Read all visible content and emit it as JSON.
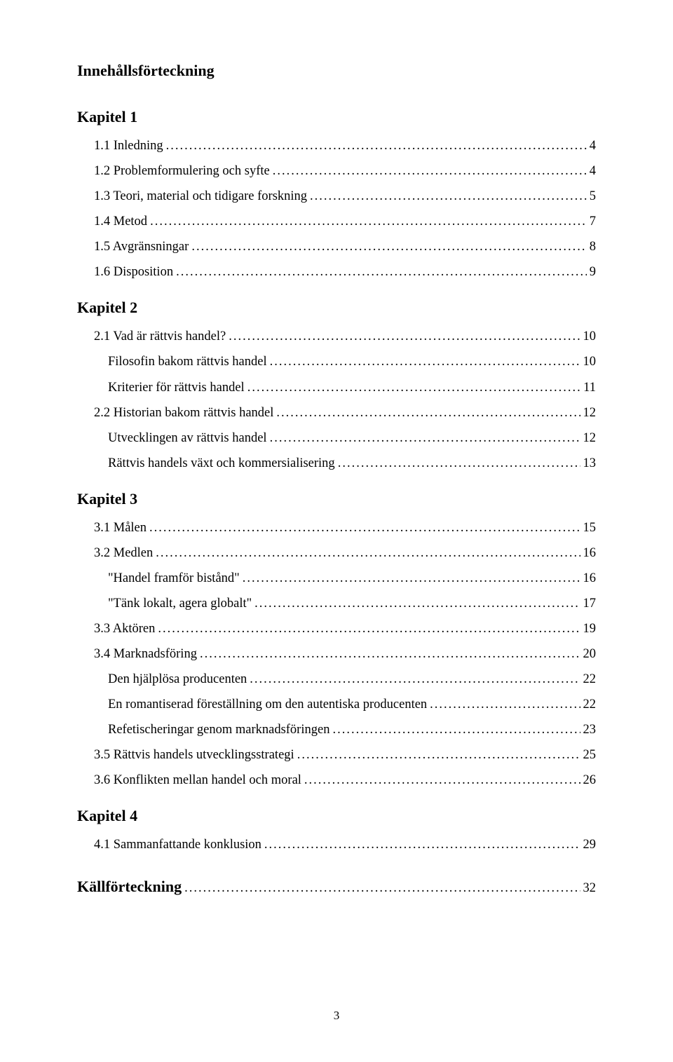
{
  "title": "Innehållsförteckning",
  "page_number": "3",
  "colors": {
    "bg": "#ffffff",
    "text": "#000000"
  },
  "typography": {
    "family": "Times New Roman",
    "title_pt": 17,
    "body_pt": 14
  },
  "chapters": [
    {
      "heading": "Kapitel 1",
      "entries": [
        {
          "level": 1,
          "label": "1.1 Inledning",
          "page": "4"
        },
        {
          "level": 1,
          "label": "1.2 Problemformulering och syfte",
          "page": "4"
        },
        {
          "level": 1,
          "label": "1.3 Teori, material och tidigare forskning",
          "page": "5"
        },
        {
          "level": 1,
          "label": "1.4 Metod",
          "page": "7"
        },
        {
          "level": 1,
          "label": "1.5 Avgränsningar",
          "page": "8"
        },
        {
          "level": 1,
          "label": "1.6 Disposition",
          "page": "9"
        }
      ]
    },
    {
      "heading": "Kapitel 2",
      "entries": [
        {
          "level": 1,
          "label": "2.1 Vad är rättvis handel?",
          "page": "10"
        },
        {
          "level": 2,
          "label": "Filosofin bakom rättvis handel",
          "page": "10"
        },
        {
          "level": 2,
          "label": "Kriterier för rättvis handel",
          "page": "11"
        },
        {
          "level": 1,
          "label": "2.2 Historian bakom rättvis handel",
          "page": "12"
        },
        {
          "level": 2,
          "label": "Utvecklingen av rättvis handel",
          "page": "12"
        },
        {
          "level": 2,
          "label": "Rättvis handels växt och kommersialisering",
          "page": "13"
        }
      ]
    },
    {
      "heading": "Kapitel 3",
      "entries": [
        {
          "level": 1,
          "label": "3.1 Målen",
          "page": "15"
        },
        {
          "level": 1,
          "label": "3.2 Medlen",
          "page": "16"
        },
        {
          "level": 2,
          "label": "\"Handel framför bistånd\"",
          "page": "16"
        },
        {
          "level": 2,
          "label": "\"Tänk lokalt, agera globalt\"",
          "page": "17"
        },
        {
          "level": 1,
          "label": "3.3 Aktören",
          "page": "19"
        },
        {
          "level": 1,
          "label": "3.4 Marknadsföring",
          "page": "20"
        },
        {
          "level": 2,
          "label": "Den hjälplösa producenten",
          "page": "22"
        },
        {
          "level": 2,
          "label": "En romantiserad föreställning om den autentiska producenten",
          "page": "22"
        },
        {
          "level": 2,
          "label": "Refetischeringar genom marknadsföringen",
          "page": "23"
        },
        {
          "level": 1,
          "label": "3.5 Rättvis handels utvecklingsstrategi",
          "page": "25"
        },
        {
          "level": 1,
          "label": "3.6 Konflikten mellan handel och moral",
          "page": "26"
        }
      ]
    },
    {
      "heading": "Kapitel 4",
      "entries": [
        {
          "level": 1,
          "label": "4.1 Sammanfattande konklusion",
          "page": "29"
        }
      ]
    },
    {
      "heading": "Källförteckning",
      "is_leaf": true,
      "page": "32",
      "entries": []
    }
  ]
}
